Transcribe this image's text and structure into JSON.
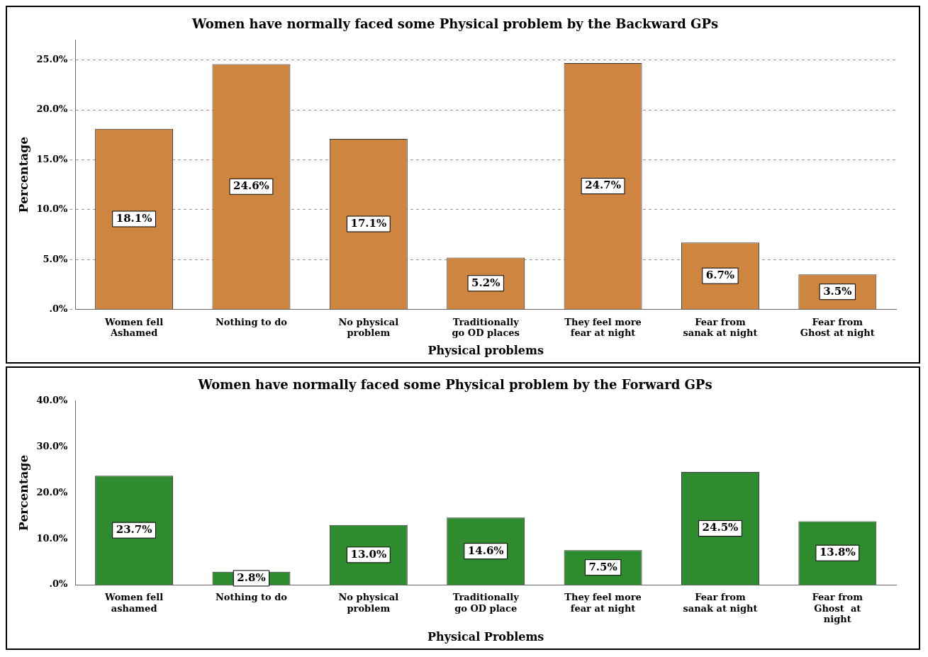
{
  "chart_data": [
    {
      "type": "bar",
      "title": "Women have normally faced some Physical problem by the Backward GPs",
      "xlabel": "Physical problems",
      "ylabel": "Percentage",
      "categories": [
        "Women fell Ashamed",
        "Nothing to do",
        "No physical problem",
        "Traditionally go OD places",
        "They feel more fear at night",
        "Fear from sanak at night",
        "Fear from Ghost at night"
      ],
      "values": [
        18.1,
        24.6,
        17.1,
        5.2,
        24.7,
        6.7,
        3.5
      ],
      "value_labels": [
        "18.1%",
        "24.6%",
        "17.1%",
        "5.2%",
        "24.7%",
        "6.7%",
        "3.5%"
      ],
      "color": "#cd853f",
      "ylim": [
        0,
        27
      ],
      "yticks": [
        {
          "value": 0,
          "label": ".0%"
        },
        {
          "value": 5,
          "label": "5.0%"
        },
        {
          "value": 10,
          "label": "10.0%"
        },
        {
          "value": 15,
          "label": "15.0%"
        },
        {
          "value": 20,
          "label": "20.0%"
        },
        {
          "value": 25,
          "label": "25.0%"
        }
      ],
      "grid": "y",
      "legend": false
    },
    {
      "type": "bar",
      "title": "Women have normally faced some Physical problem by the Forward GPs",
      "xlabel": "Physical Problems",
      "ylabel": "Percentage",
      "categories": [
        "Women fell ashamed",
        "Nothing to do",
        "No physical problem",
        "Traditionally go OD place",
        "They feel more fear at night",
        "Fear from sanak at night",
        "Fear from Ghost  at night"
      ],
      "values": [
        23.7,
        2.8,
        13.0,
        14.6,
        7.5,
        24.5,
        13.8
      ],
      "value_labels": [
        "23.7%",
        "2.8%",
        "13.0%",
        "14.6%",
        "7.5%",
        "24.5%",
        "13.8%"
      ],
      "color": "#2e8b2e",
      "ylim": [
        0,
        40
      ],
      "yticks": [
        {
          "value": 0,
          "label": ".0%"
        },
        {
          "value": 10,
          "label": "10.0%"
        },
        {
          "value": 20,
          "label": "20.0%"
        },
        {
          "value": 30,
          "label": "30.0%"
        },
        {
          "value": 40,
          "label": "40.0%"
        }
      ],
      "grid": false,
      "legend": false
    }
  ]
}
